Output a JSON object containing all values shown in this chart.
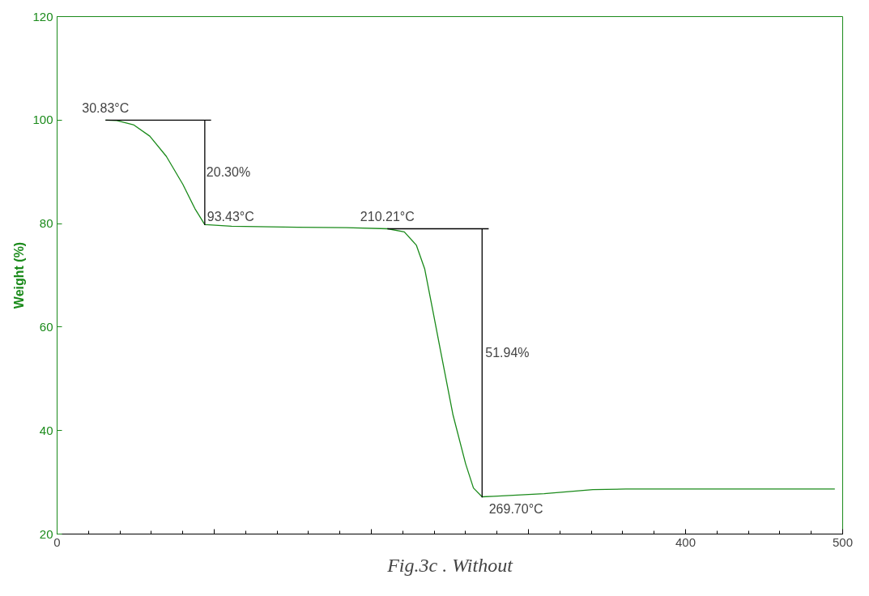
{
  "chart_data": {
    "type": "line",
    "ylabel": "Weight (%)",
    "xlim": [
      0,
      500
    ],
    "ylim": [
      20,
      120
    ],
    "xticks": [
      0,
      {
        "value": 100,
        "label": null
      },
      {
        "value": 200,
        "label": null
      },
      {
        "value": 300,
        "label": null
      },
      400,
      500
    ],
    "yticks": [
      20,
      40,
      60,
      80,
      100,
      120
    ],
    "grid": false,
    "marker": "none",
    "line_style": "solid",
    "series": [
      {
        "color": "#1a8a1a",
        "x": [
          30.8,
          38,
          48.6,
          59,
          69.5,
          80,
          87.7,
          94,
          111,
          153,
          184,
          210.4,
          221,
          228.7,
          234,
          239,
          244,
          252,
          260,
          265,
          270.5,
          278,
          310,
          341,
          362,
          495
        ],
        "values": [
          100,
          99.9,
          99.1,
          96.9,
          93,
          87.6,
          82.9,
          79.8,
          79.5,
          79.3,
          79.2,
          79,
          78.4,
          75.8,
          71.2,
          63.4,
          55.5,
          43,
          33.6,
          28.9,
          27.2,
          27.3,
          27.8,
          28.6,
          28.7,
          28.7
        ]
      },
      {
        "color": "#000000",
        "x": [
          30.83,
          98
        ],
        "values": [
          100,
          100
        ]
      },
      {
        "color": "#000000",
        "x": [
          94,
          94
        ],
        "values": [
          100,
          79.7
        ]
      },
      {
        "color": "#000000",
        "x": [
          210.21,
          274.7
        ],
        "values": [
          79,
          79
        ]
      },
      {
        "color": "#000000",
        "x": [
          270.5,
          270.5
        ],
        "values": [
          79,
          27.1
        ]
      }
    ],
    "annotations": [
      {
        "text": "30.83°C",
        "x": 30.83,
        "y": 100
      },
      {
        "text": "20.30%",
        "x": 94,
        "y": 90
      },
      {
        "text": "93.43°C",
        "x": 93.43,
        "y": 79.7
      },
      {
        "text": "210.21°C",
        "x": 210.21,
        "y": 79
      },
      {
        "text": "51.94%",
        "x": 270.5,
        "y": 55
      },
      {
        "text": "269.70°C",
        "x": 269.7,
        "y": 27.1
      },
      "Fig.3c . Without"
    ]
  }
}
